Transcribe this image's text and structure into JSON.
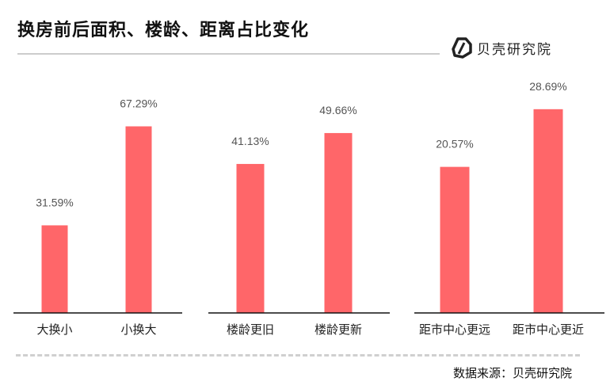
{
  "title": "换房前后面积、楼龄、距离占比变化",
  "logo_text": "贝壳研究院",
  "source": "数据来源：贝壳研究院",
  "colors": {
    "bar": "#FF6669",
    "axis": "#111111"
  },
  "chart_data": [
    {
      "type": "bar",
      "categories": [
        "大换小",
        "小换大"
      ],
      "values": [
        31.59,
        67.29
      ],
      "labels": [
        "31.59%",
        "67.29%"
      ],
      "ylim": [
        0,
        84
      ]
    },
    {
      "type": "bar",
      "categories": [
        "楼龄更旧",
        "楼龄更新"
      ],
      "values": [
        41.13,
        49.66
      ],
      "labels": [
        "41.13%",
        "49.66%"
      ],
      "ylim": [
        0,
        64.3
      ]
    },
    {
      "type": "bar",
      "categories": [
        "距市中心更远",
        "距市中心更近"
      ],
      "values": [
        20.57,
        28.69
      ],
      "labels": [
        "20.57%",
        "28.69%"
      ],
      "ylim": [
        0,
        32.8
      ]
    }
  ]
}
